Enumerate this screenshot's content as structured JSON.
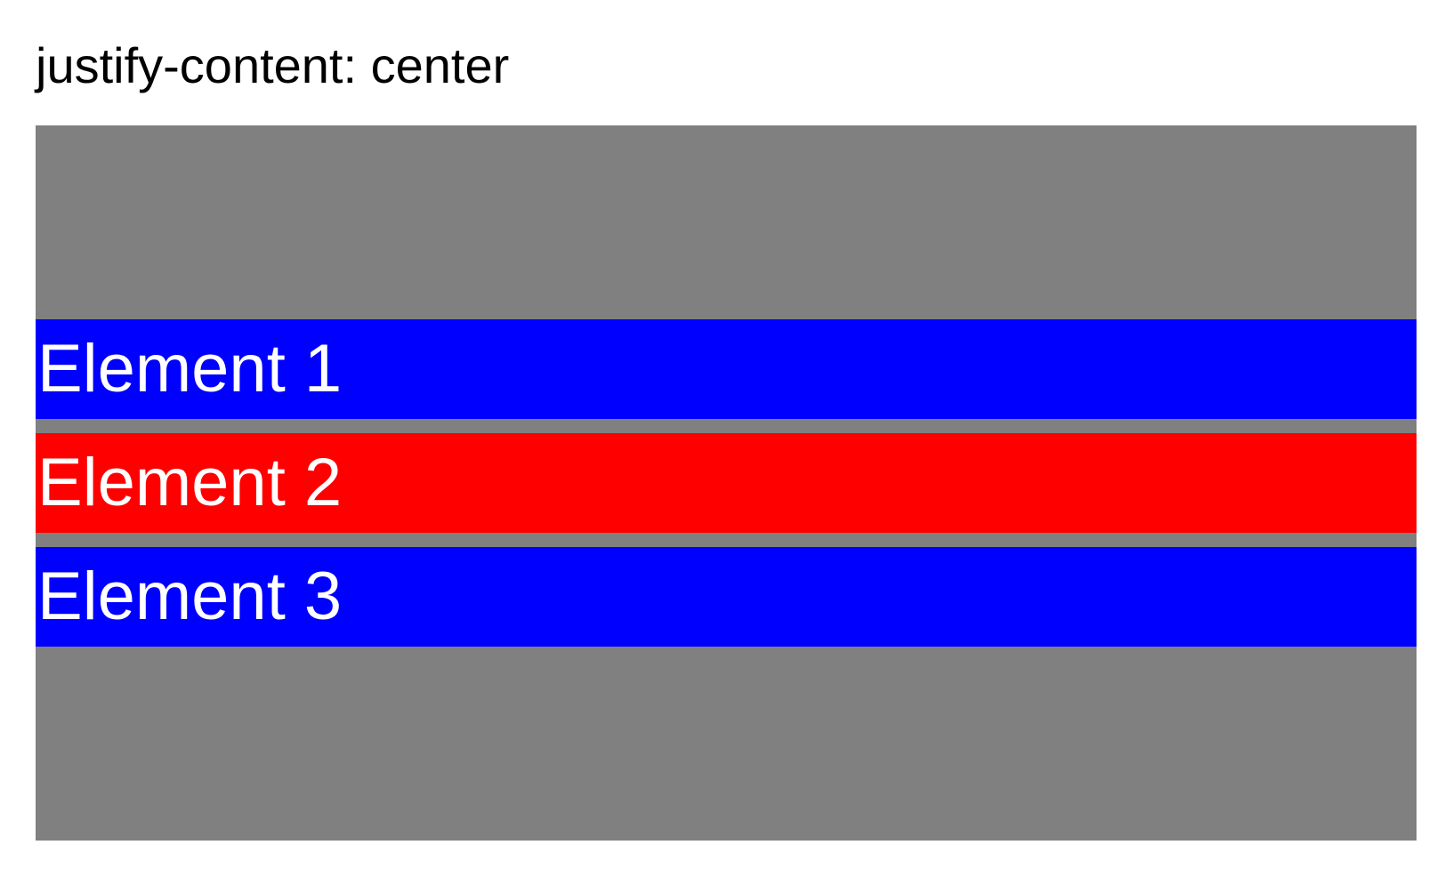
{
  "page": {
    "title": "justify-content: center"
  },
  "container": {
    "background_color": "#808080",
    "items": [
      {
        "label": "Element 1",
        "color": "#0000ff"
      },
      {
        "label": "Element 2",
        "color": "#ff0000"
      },
      {
        "label": "Element 3",
        "color": "#0000ff"
      }
    ]
  }
}
